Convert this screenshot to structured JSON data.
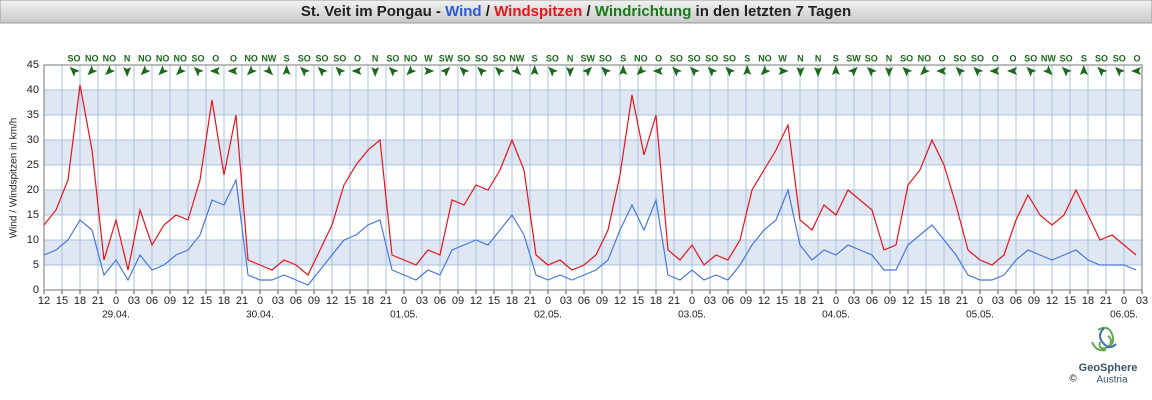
{
  "chart_data": {
    "type": "line",
    "title_parts": [
      {
        "text": "St. Veit im Pongau - ",
        "color": "#222222"
      },
      {
        "text": "Wind",
        "color": "#2a5bd7"
      },
      {
        "text": " / ",
        "color": "#222222"
      },
      {
        "text": "Windspitzen",
        "color": "#e8141c"
      },
      {
        "text": " / ",
        "color": "#222222"
      },
      {
        "text": "Windrichtung",
        "color": "#1a7a1a"
      },
      {
        "text": " in den letzten 7 Tagen",
        "color": "#222222"
      }
    ],
    "y_label": "Wind / Windspitzen in km/h",
    "x": [
      0,
      2,
      4,
      6,
      8,
      10,
      12,
      14,
      16,
      18,
      20,
      22,
      24,
      26,
      28,
      30,
      32,
      34,
      36,
      38,
      40,
      42,
      44,
      46,
      48,
      50,
      52,
      54,
      56,
      58,
      60,
      62,
      64,
      66,
      68,
      70,
      72,
      74,
      76,
      78,
      80,
      82,
      84,
      86,
      88,
      90,
      92,
      94,
      96,
      98,
      100,
      102,
      104,
      106,
      108,
      110,
      112,
      114,
      116,
      118,
      120,
      122,
      124,
      126,
      128,
      130,
      132,
      134,
      136,
      138,
      140,
      142,
      144,
      146,
      148,
      150,
      152,
      154,
      156,
      158,
      160,
      162,
      164,
      166,
      168,
      170,
      172,
      174,
      176,
      178,
      180,
      182
    ],
    "xlim": [
      0,
      183
    ],
    "xticks": [
      {
        "value": 0,
        "label": "12"
      },
      {
        "value": 3,
        "label": "15"
      },
      {
        "value": 6,
        "label": "18"
      },
      {
        "value": 9,
        "label": "21"
      },
      {
        "value": 12,
        "label": "0"
      },
      {
        "value": 15,
        "label": "03"
      },
      {
        "value": 18,
        "label": "06"
      },
      {
        "value": 21,
        "label": "09"
      },
      {
        "value": 24,
        "label": "12"
      },
      {
        "value": 27,
        "label": "15"
      },
      {
        "value": 30,
        "label": "18"
      },
      {
        "value": 33,
        "label": "21"
      },
      {
        "value": 36,
        "label": "0"
      },
      {
        "value": 39,
        "label": "03"
      },
      {
        "value": 42,
        "label": "06"
      },
      {
        "value": 45,
        "label": "09"
      },
      {
        "value": 48,
        "label": "12"
      },
      {
        "value": 51,
        "label": "15"
      },
      {
        "value": 54,
        "label": "18"
      },
      {
        "value": 57,
        "label": "21"
      },
      {
        "value": 60,
        "label": "0"
      },
      {
        "value": 63,
        "label": "03"
      },
      {
        "value": 66,
        "label": "06"
      },
      {
        "value": 69,
        "label": "09"
      },
      {
        "value": 72,
        "label": "12"
      },
      {
        "value": 75,
        "label": "15"
      },
      {
        "value": 78,
        "label": "18"
      },
      {
        "value": 81,
        "label": "21"
      },
      {
        "value": 84,
        "label": "0"
      },
      {
        "value": 87,
        "label": "03"
      },
      {
        "value": 90,
        "label": "06"
      },
      {
        "value": 93,
        "label": "09"
      },
      {
        "value": 96,
        "label": "12"
      },
      {
        "value": 99,
        "label": "15"
      },
      {
        "value": 102,
        "label": "18"
      },
      {
        "value": 105,
        "label": "21"
      },
      {
        "value": 108,
        "label": "0"
      },
      {
        "value": 111,
        "label": "03"
      },
      {
        "value": 114,
        "label": "06"
      },
      {
        "value": 117,
        "label": "09"
      },
      {
        "value": 120,
        "label": "12"
      },
      {
        "value": 123,
        "label": "15"
      },
      {
        "value": 126,
        "label": "18"
      },
      {
        "value": 129,
        "label": "21"
      },
      {
        "value": 132,
        "label": "0"
      },
      {
        "value": 135,
        "label": "03"
      },
      {
        "value": 138,
        "label": "06"
      },
      {
        "value": 141,
        "label": "09"
      },
      {
        "value": 144,
        "label": "12"
      },
      {
        "value": 147,
        "label": "15"
      },
      {
        "value": 150,
        "label": "18"
      },
      {
        "value": 153,
        "label": "21"
      },
      {
        "value": 156,
        "label": "0"
      },
      {
        "value": 159,
        "label": "03"
      },
      {
        "value": 162,
        "label": "06"
      },
      {
        "value": 165,
        "label": "09"
      },
      {
        "value": 168,
        "label": "12"
      },
      {
        "value": 171,
        "label": "15"
      },
      {
        "value": 174,
        "label": "18"
      },
      {
        "value": 177,
        "label": "21"
      },
      {
        "value": 180,
        "label": "0"
      },
      {
        "value": 183,
        "label": "03"
      }
    ],
    "date_labels": [
      {
        "value": 12,
        "label": "29.04."
      },
      {
        "value": 36,
        "label": "30.04."
      },
      {
        "value": 60,
        "label": "01.05."
      },
      {
        "value": 84,
        "label": "02.05."
      },
      {
        "value": 108,
        "label": "03.05."
      },
      {
        "value": 132,
        "label": "04.05."
      },
      {
        "value": 156,
        "label": "05.05."
      },
      {
        "value": 180,
        "label": "06.05."
      }
    ],
    "ylim": [
      0,
      45
    ],
    "yticks": [
      0,
      5,
      10,
      15,
      20,
      25,
      30,
      35,
      40,
      45
    ],
    "grid": true,
    "band_color": "#dfe7f3",
    "series": [
      {
        "name": "Windspitzen",
        "color": "#e8141c",
        "values": [
          13,
          16,
          22,
          41,
          28,
          6,
          14,
          4,
          16,
          9,
          13,
          15,
          14,
          22,
          38,
          23,
          35,
          6,
          5,
          4,
          6,
          5,
          3,
          8,
          13,
          21,
          25,
          28,
          30,
          7,
          6,
          5,
          8,
          7,
          18,
          17,
          21,
          20,
          24,
          30,
          24,
          7,
          5,
          6,
          4,
          5,
          7,
          12,
          23,
          39,
          27,
          35,
          8,
          6,
          9,
          5,
          7,
          6,
          10,
          20,
          24,
          28,
          33,
          14,
          12,
          17,
          15,
          20,
          18,
          16,
          8,
          9,
          21,
          24,
          30,
          25,
          17,
          8,
          6,
          5,
          7,
          14,
          19,
          15,
          13,
          15,
          20,
          15,
          10,
          11,
          9,
          7
        ]
      },
      {
        "name": "Wind",
        "color": "#4a78d8",
        "values": [
          7,
          8,
          10,
          14,
          12,
          3,
          6,
          2,
          7,
          4,
          5,
          7,
          8,
          11,
          18,
          17,
          22,
          3,
          2,
          2,
          3,
          2,
          1,
          4,
          7,
          10,
          11,
          13,
          14,
          4,
          3,
          2,
          4,
          3,
          8,
          9,
          10,
          9,
          12,
          15,
          11,
          3,
          2,
          3,
          2,
          3,
          4,
          6,
          12,
          17,
          12,
          18,
          3,
          2,
          4,
          2,
          3,
          2,
          5,
          9,
          12,
          14,
          20,
          9,
          6,
          8,
          7,
          9,
          8,
          7,
          4,
          4,
          9,
          11,
          13,
          10,
          7,
          3,
          2,
          2,
          3,
          6,
          8,
          7,
          6,
          7,
          8,
          6,
          5,
          5,
          5,
          4
        ]
      }
    ],
    "direction_color": "#1a6a1a",
    "wind_directions": [
      "SO",
      "NO",
      "NO",
      "N",
      "NO",
      "NO",
      "NO",
      "SO",
      "O",
      "O",
      "NO",
      "NW",
      "S",
      "SO",
      "SO",
      "SO",
      "O",
      "N",
      "SO",
      "NO",
      "W",
      "SW",
      "SO",
      "SO",
      "SO",
      "NW",
      "S",
      "SO",
      "N",
      "SW",
      "SO",
      "S",
      "NO",
      "O",
      "SO",
      "SO",
      "SO",
      "SO",
      "S",
      "NO",
      "W",
      "N",
      "N",
      "S",
      "SW",
      "SO",
      "N",
      "SO",
      "NO",
      "O",
      "SO",
      "SO",
      "O",
      "O",
      "SO",
      "NW",
      "SO",
      "S",
      "SO",
      "SO",
      "O"
    ]
  },
  "logo": {
    "name": "GeoSphere",
    "sub": "Austria",
    "copyright": "©"
  }
}
